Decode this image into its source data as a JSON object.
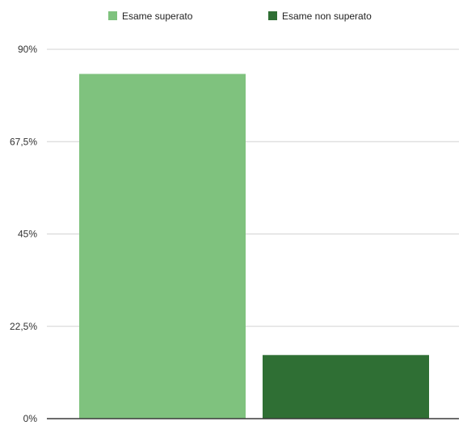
{
  "chart_data": {
    "type": "bar",
    "categories": [
      ""
    ],
    "series": [
      {
        "name": "Esame superato",
        "values": [
          84
        ],
        "color": "#7fc27e"
      },
      {
        "name": "Esame non superato",
        "values": [
          15.5
        ],
        "color": "#2f6f34"
      }
    ],
    "ylim": [
      0,
      90
    ],
    "yticks": [
      0,
      22.5,
      45,
      67.5,
      90
    ],
    "ytick_labels": [
      "0%",
      "22,5%",
      "45%",
      "67,5%",
      "90%"
    ],
    "grid": true,
    "legend_position": "top",
    "title": "",
    "xlabel": "",
    "ylabel": ""
  }
}
